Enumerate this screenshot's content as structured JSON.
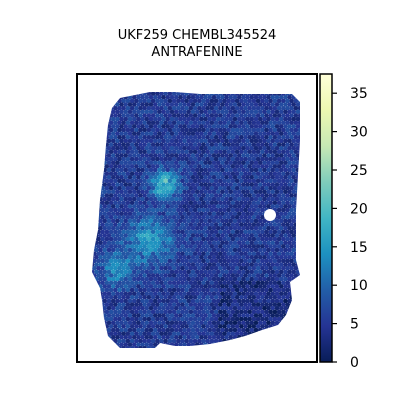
{
  "chart_data": {
    "type": "heatmap",
    "title_lines": [
      "UKF259 CHEMBL345524",
      "ANTRAFENINE"
    ],
    "xlabel": "",
    "ylabel": "",
    "grid": false,
    "legend": "none",
    "colorbar": {
      "position": "right",
      "range": [
        0,
        37.5
      ],
      "ticks": [
        0,
        5,
        10,
        15,
        20,
        25,
        30,
        35
      ],
      "colormap": "YlGnBu",
      "colors": [
        "#081d58",
        "#253494",
        "#225ea8",
        "#1d91c0",
        "#41b6c4",
        "#7fcdbb",
        "#c7e9b4",
        "#edf8b1",
        "#ffffd9"
      ]
    },
    "hotspots": [
      {
        "region": "upper-left cluster",
        "approx_value": 22
      },
      {
        "region": "center-left band",
        "approx_value": 18
      },
      {
        "region": "lower-left",
        "approx_value": 15
      }
    ],
    "background_value": 5
  }
}
